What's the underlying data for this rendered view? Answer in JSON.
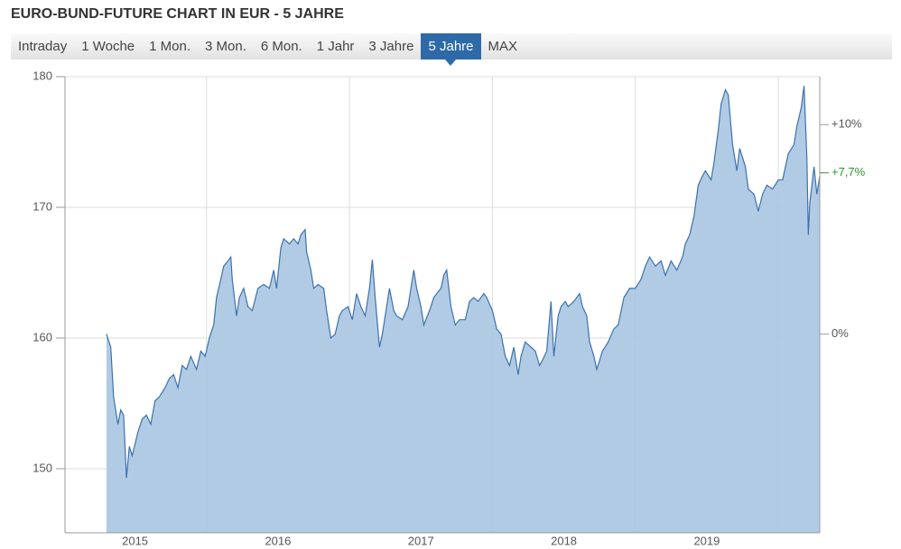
{
  "tabs": [
    {
      "label": "Intraday"
    },
    {
      "label": "1 Woche"
    },
    {
      "label": "1 Mon."
    },
    {
      "label": "3 Mon."
    },
    {
      "label": "6 Mon."
    },
    {
      "label": "1 Jahr"
    },
    {
      "label": "3 Jahre"
    },
    {
      "label": "5 Jahre",
      "selected": true
    },
    {
      "label": "MAX"
    }
  ],
  "chart_data": {
    "type": "area",
    "title": "EURO-BUND-FUTURE CHART IN EUR - 5 JAHRE",
    "x": [
      2014.8,
      2014.83,
      2014.85,
      2014.88,
      2014.9,
      2014.92,
      2014.94,
      2014.96,
      2014.98,
      2015.02,
      2015.05,
      2015.08,
      2015.11,
      2015.14,
      2015.17,
      2015.21,
      2015.24,
      2015.27,
      2015.3,
      2015.33,
      2015.36,
      2015.39,
      2015.43,
      2015.46,
      2015.49,
      2015.52,
      2015.55,
      2015.57,
      2015.6,
      2015.62,
      2015.65,
      2015.67,
      2015.68,
      2015.71,
      2015.73,
      2015.76,
      2015.79,
      2015.82,
      2015.86,
      2015.9,
      2015.94,
      2015.97,
      2015.99,
      2016.02,
      2016.04,
      2016.08,
      2016.11,
      2016.14,
      2016.16,
      2016.19,
      2016.2,
      2016.23,
      2016.25,
      2016.28,
      2016.32,
      2016.34,
      2016.37,
      2016.4,
      2016.43,
      2016.45,
      2016.49,
      2016.52,
      2016.55,
      2016.58,
      2016.61,
      2016.64,
      2016.66,
      2016.68,
      2016.71,
      2016.73,
      2016.76,
      2016.78,
      2016.81,
      2016.83,
      2016.87,
      2016.91,
      2016.95,
      2016.97,
      2017.0,
      2017.02,
      2017.06,
      2017.09,
      2017.11,
      2017.14,
      2017.16,
      2017.18,
      2017.21,
      2017.24,
      2017.27,
      2017.31,
      2017.34,
      2017.37,
      2017.4,
      2017.44,
      2017.46,
      2017.5,
      2017.53,
      2017.56,
      2017.59,
      2017.62,
      2017.65,
      2017.68,
      2017.7,
      2017.73,
      2017.77,
      2017.8,
      2017.83,
      2017.85,
      2017.88,
      2017.91,
      2017.93,
      2017.96,
      2017.98,
      2018.01,
      2018.03,
      2018.07,
      2018.11,
      2018.13,
      2018.16,
      2018.18,
      2018.21,
      2018.23,
      2018.27,
      2018.31,
      2018.35,
      2018.38,
      2018.42,
      2018.46,
      2018.5,
      2018.54,
      2018.57,
      2018.6,
      2018.64,
      2018.68,
      2018.71,
      2018.75,
      2018.79,
      2018.83,
      2018.85,
      2018.88,
      2018.91,
      2018.94,
      2018.97,
      2018.99,
      2019.03,
      2019.05,
      2019.08,
      2019.1,
      2019.13,
      2019.15,
      2019.18,
      2019.21,
      2019.23,
      2019.27,
      2019.29,
      2019.33,
      2019.36,
      2019.39,
      2019.42,
      2019.46,
      2019.5,
      2019.53,
      2019.57,
      2019.61,
      2019.63,
      2019.66,
      2019.68,
      2019.7,
      2019.71,
      2019.72,
      2019.75,
      2019.77,
      2019.79
    ],
    "values": [
      160.3,
      159.3,
      155.5,
      153.4,
      154.5,
      154.1,
      149.3,
      151.7,
      151.0,
      152.8,
      153.8,
      154.1,
      153.4,
      155.2,
      155.5,
      156.2,
      156.9,
      157.2,
      156.2,
      157.9,
      157.6,
      158.6,
      157.6,
      159.0,
      158.6,
      160.0,
      161.0,
      163.1,
      164.5,
      165.5,
      165.9,
      166.2,
      164.5,
      161.7,
      163.1,
      163.8,
      162.4,
      162.1,
      163.8,
      164.1,
      163.8,
      165.2,
      163.8,
      166.9,
      167.6,
      167.2,
      167.6,
      167.2,
      167.9,
      168.3,
      166.6,
      165.2,
      163.8,
      164.1,
      163.8,
      162.1,
      160.0,
      160.3,
      161.7,
      162.1,
      162.4,
      161.4,
      163.4,
      162.4,
      161.7,
      163.8,
      166.0,
      163.1,
      159.3,
      160.3,
      162.4,
      163.8,
      162.1,
      161.7,
      161.4,
      162.4,
      165.2,
      163.8,
      162.4,
      161.0,
      162.1,
      163.1,
      163.4,
      163.8,
      164.8,
      165.2,
      162.4,
      161.0,
      161.4,
      161.4,
      162.8,
      163.1,
      162.8,
      163.4,
      163.1,
      162.1,
      160.7,
      160.3,
      158.6,
      157.9,
      159.3,
      157.2,
      158.6,
      159.7,
      159.3,
      159.0,
      157.9,
      158.3,
      159.0,
      162.8,
      158.6,
      161.7,
      162.4,
      162.8,
      162.4,
      162.8,
      163.4,
      162.4,
      161.7,
      159.7,
      158.6,
      157.6,
      159.0,
      159.7,
      160.7,
      161.0,
      163.1,
      163.8,
      163.8,
      164.5,
      165.5,
      166.2,
      165.5,
      165.9,
      164.8,
      165.9,
      165.2,
      166.2,
      167.2,
      167.9,
      169.3,
      171.7,
      172.4,
      172.8,
      172.1,
      173.4,
      175.9,
      177.9,
      179.0,
      178.6,
      174.8,
      172.8,
      174.5,
      173.1,
      171.4,
      171.0,
      169.7,
      171.0,
      171.7,
      171.4,
      172.1,
      172.1,
      174.1,
      174.8,
      176.2,
      177.6,
      179.3,
      173.8,
      167.9,
      170.3,
      173.1,
      171.0,
      172.4
    ],
    "color": "#3b72ae",
    "fill_color": "#a9c5e2",
    "xlim": [
      2014.51,
      2019.79
    ],
    "xticks": [
      2015,
      2016,
      2017,
      2018,
      2019
    ],
    "xgrid": [
      2015.5,
      2016.5,
      2017.5,
      2018.5,
      2019.5
    ],
    "ylim": [
      145.1,
      180
    ],
    "yticks": [
      150,
      160,
      170,
      180
    ],
    "y2lim": [
      -9.48,
      12.29
    ],
    "y2ticks": [
      {
        "value": 0,
        "label": "0%"
      },
      {
        "value": 10,
        "label": "+10%"
      }
    ],
    "last_change": {
      "value": 7.7,
      "label": "+7,7%",
      "color": "#2a962a"
    },
    "grid": true
  }
}
